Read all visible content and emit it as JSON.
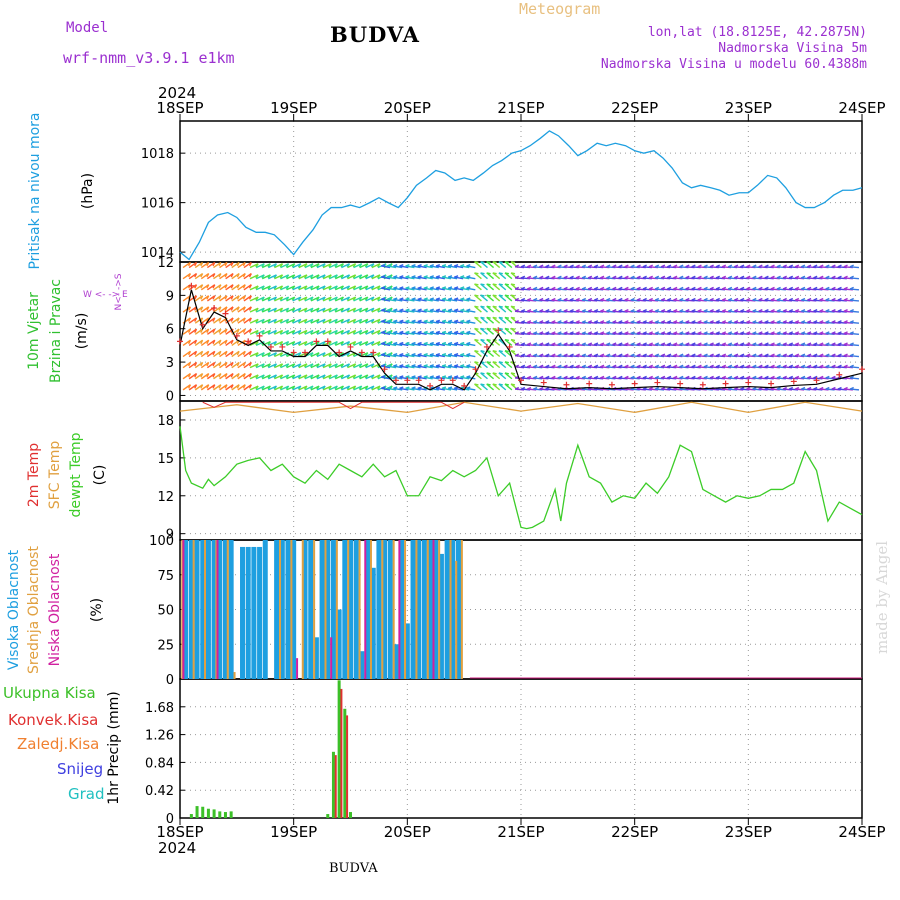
{
  "header": {
    "model_label": "Model",
    "model_name": "wrf-nmm_v3.9.1  e1km",
    "station": "BUDVA",
    "meteogram": "Meteogram",
    "lonlat": "lon,lat (18.8125E, 42.2875N)",
    "altitude": "Nadmorska Visina 5m",
    "model_altitude": "Nadmorska Visina u modelu 60.4388m",
    "footer_station": "BUDVA",
    "credit": "made by Angel"
  },
  "colors": {
    "pressure": "#1e9fe0",
    "temp2m": "#e03030",
    "sfc_temp": "#e0a040",
    "dewpoint": "#3ccc28",
    "high_cloud": "#1e9fe0",
    "mid_cloud": "#e0a040",
    "low_cloud": "#d020a0",
    "total_precip": "#3cc028",
    "conv_precip": "#e03030",
    "frozen_precip": "#f08030",
    "snow": "#4040e0",
    "hail": "#20c0c0",
    "grid": "#999999"
  },
  "chart_data": [
    {
      "type": "line",
      "id": "pressure",
      "ylabel_colored": "Pritisak na nivou mora",
      "ylabel_unit": "(hPa)",
      "x_ticks": [
        "18SEP",
        "19SEP",
        "20SEP",
        "21SEP",
        "22SEP",
        "23SEP",
        "24SEP"
      ],
      "x_year": "2024",
      "ylim": [
        1013.6,
        1019.3
      ],
      "y_ticks": [
        1014,
        1016,
        1018
      ],
      "series": [
        {
          "x": [
            0,
            0.08,
            0.17,
            0.25,
            0.33,
            0.42,
            0.5,
            0.58,
            0.67,
            0.75,
            0.83,
            0.92,
            1.0,
            1.08,
            1.17,
            1.25,
            1.33,
            1.42,
            1.5,
            1.58,
            1.67,
            1.75,
            1.83,
            1.92,
            2.0,
            2.08,
            2.17,
            2.25,
            2.33,
            2.42,
            2.5,
            2.58,
            2.67,
            2.75,
            2.83,
            2.92,
            3.0,
            3.08,
            3.17,
            3.25,
            3.33,
            3.42,
            3.5,
            3.58,
            3.67,
            3.75,
            3.83,
            3.92,
            4.0,
            4.08,
            4.17,
            4.25,
            4.33,
            4.42,
            4.5,
            4.58,
            4.67,
            4.75,
            4.83,
            4.92,
            5.0,
            5.08,
            5.17,
            5.25,
            5.33,
            5.42,
            5.5,
            5.58,
            5.67,
            5.75,
            5.83,
            5.92,
            6.0
          ],
          "y": [
            1014.0,
            1013.7,
            1014.4,
            1015.2,
            1015.5,
            1015.6,
            1015.4,
            1015.0,
            1014.8,
            1014.8,
            1014.7,
            1014.3,
            1013.9,
            1014.4,
            1014.9,
            1015.5,
            1015.8,
            1015.8,
            1015.9,
            1015.8,
            1016.0,
            1016.2,
            1016.0,
            1015.8,
            1016.2,
            1016.7,
            1017.0,
            1017.3,
            1017.2,
            1016.9,
            1017.0,
            1016.9,
            1017.2,
            1017.5,
            1017.7,
            1018.0,
            1018.1,
            1018.3,
            1018.6,
            1018.9,
            1018.7,
            1018.3,
            1017.9,
            1018.1,
            1018.4,
            1018.3,
            1018.4,
            1018.3,
            1018.1,
            1018.0,
            1018.1,
            1017.8,
            1017.4,
            1016.8,
            1016.6,
            1016.7,
            1016.6,
            1016.5,
            1016.3,
            1016.4,
            1016.4,
            1016.7,
            1017.1,
            1017.0,
            1016.6,
            1016.0,
            1015.8,
            1015.8,
            1016.0,
            1016.3,
            1016.5,
            1016.5,
            1016.6
          ]
        }
      ]
    },
    {
      "type": "line",
      "id": "wind",
      "ylabel_colored_1": "10m Vjetar",
      "ylabel_colored_2": "Brzina i Pravac",
      "ylabel_unit": "(m/s)",
      "compass": "N<- ->S",
      "compass_we": "W <- -> E",
      "ylim": [
        -0.5,
        12
      ],
      "y_ticks": [
        0,
        3,
        6,
        9,
        12
      ],
      "series": [
        {
          "name": "speed",
          "x": [
            0,
            0.1,
            0.2,
            0.3,
            0.4,
            0.5,
            0.6,
            0.7,
            0.8,
            0.9,
            1.0,
            1.1,
            1.2,
            1.3,
            1.4,
            1.5,
            1.6,
            1.7,
            1.8,
            1.9,
            2.0,
            2.1,
            2.2,
            2.3,
            2.4,
            2.5,
            2.6,
            2.7,
            2.8,
            2.9,
            3.0,
            3.2,
            3.4,
            3.6,
            3.8,
            4.0,
            4.2,
            4.4,
            4.6,
            4.8,
            5.0,
            5.2,
            5.4,
            5.6,
            5.8,
            6.0
          ],
          "y": [
            4.5,
            9.5,
            6.0,
            7.5,
            7.0,
            5.0,
            4.5,
            5.0,
            4.0,
            4.0,
            3.5,
            3.5,
            4.5,
            4.5,
            3.5,
            4.0,
            3.5,
            3.5,
            2.0,
            1.0,
            1.0,
            1.0,
            0.5,
            1.0,
            1.0,
            0.5,
            2.0,
            4.0,
            5.5,
            4.0,
            1.0,
            0.8,
            0.6,
            0.7,
            0.6,
            0.7,
            0.8,
            0.7,
            0.6,
            0.7,
            0.8,
            0.7,
            0.9,
            1.0,
            1.5,
            2.0
          ]
        }
      ]
    },
    {
      "type": "line",
      "id": "temperature",
      "ylabel_colored_1": "2m Temp",
      "ylabel_colored_2": "SFC Temp",
      "ylabel_colored_3": "dewpt Temp",
      "ylabel_unit": "(C)",
      "ylim": [
        8.5,
        19.5
      ],
      "y_ticks": [
        9,
        12,
        15,
        18
      ],
      "series": [
        {
          "name": "dewpt Temp",
          "x": [
            0,
            0.05,
            0.1,
            0.2,
            0.25,
            0.3,
            0.4,
            0.5,
            0.6,
            0.7,
            0.8,
            0.9,
            1.0,
            1.1,
            1.2,
            1.3,
            1.4,
            1.5,
            1.6,
            1.7,
            1.8,
            1.9,
            2.0,
            2.1,
            2.2,
            2.3,
            2.4,
            2.5,
            2.6,
            2.7,
            2.8,
            2.9,
            3.0,
            3.05,
            3.1,
            3.2,
            3.3,
            3.35,
            3.4,
            3.5,
            3.6,
            3.7,
            3.8,
            3.9,
            4.0,
            4.1,
            4.2,
            4.3,
            4.4,
            4.5,
            4.6,
            4.7,
            4.8,
            4.9,
            5.0,
            5.1,
            5.2,
            5.3,
            5.4,
            5.5,
            5.6,
            5.7,
            5.8,
            5.9,
            6.0
          ],
          "y": [
            17.5,
            14.0,
            13.0,
            12.6,
            13.3,
            12.8,
            13.5,
            14.5,
            14.8,
            15.0,
            14.0,
            14.5,
            13.5,
            13.0,
            14.0,
            13.3,
            14.5,
            14.0,
            13.5,
            14.5,
            13.5,
            14.0,
            12.0,
            12.0,
            13.5,
            13.2,
            14.0,
            13.5,
            14.0,
            15.0,
            12.0,
            13.0,
            9.5,
            9.4,
            9.5,
            10.0,
            12.5,
            10.0,
            13.0,
            16.0,
            13.5,
            13.0,
            11.5,
            12.0,
            11.8,
            13.0,
            12.2,
            13.5,
            16.0,
            15.5,
            12.5,
            12.0,
            11.5,
            12.0,
            11.8,
            12.0,
            12.5,
            12.5,
            13.0,
            15.5,
            14.0,
            10.0,
            11.5,
            11.0,
            10.5
          ]
        },
        {
          "name": "SFC Temp",
          "x": [
            0,
            0.5,
            1.0,
            1.5,
            2.0,
            2.5,
            3.0,
            3.5,
            4.0,
            4.5,
            5.0,
            5.5,
            6.0
          ],
          "y": [
            18.7,
            19.2,
            18.6,
            19.1,
            18.6,
            19.4,
            18.7,
            19.3,
            18.6,
            19.4,
            18.6,
            19.4,
            18.7
          ]
        },
        {
          "name": "2m Temp",
          "x": [
            0.2,
            0.3,
            0.4,
            1.4,
            1.5,
            1.6,
            2.3,
            2.4,
            2.5
          ],
          "y": [
            19.4,
            19.0,
            19.4,
            19.4,
            18.9,
            19.4,
            19.4,
            18.9,
            19.4
          ]
        }
      ]
    },
    {
      "type": "bar",
      "id": "cloud",
      "ylabel_colored_1": "Visoka Oblacnost",
      "ylabel_colored_2": "Srednja Oblacnost",
      "ylabel_colored_3": "Niska Oblacnost",
      "ylabel_unit": "(%)",
      "ylim": [
        0,
        100
      ],
      "y_ticks": [
        0,
        25,
        50,
        75,
        100
      ],
      "series": [
        {
          "name": "Visoka Oblacnost",
          "x": [
            0.05,
            0.1,
            0.15,
            0.2,
            0.25,
            0.3,
            0.35,
            0.4,
            0.45,
            0.55,
            0.6,
            0.65,
            0.7,
            0.75,
            0.85,
            0.9,
            0.95,
            1.0,
            1.1,
            1.15,
            1.2,
            1.25,
            1.3,
            1.35,
            1.4,
            1.45,
            1.5,
            1.55,
            1.6,
            1.65,
            1.7,
            1.75,
            1.8,
            1.85,
            1.9,
            1.95,
            2.0,
            2.05,
            2.1,
            2.15,
            2.2,
            2.25,
            2.3,
            2.35,
            2.4,
            2.45
          ],
          "y": [
            100,
            100,
            100,
            100,
            100,
            100,
            100,
            100,
            100,
            95,
            95,
            95,
            95,
            100,
            100,
            100,
            100,
            100,
            100,
            100,
            30,
            100,
            100,
            100,
            50,
            100,
            100,
            100,
            20,
            100,
            80,
            100,
            100,
            100,
            25,
            100,
            40,
            100,
            100,
            100,
            100,
            100,
            90,
            100,
            100,
            100
          ]
        },
        {
          "name": "Srednja Oblacnost",
          "x": [
            0.02,
            0.12,
            0.22,
            0.32,
            0.42,
            0.48,
            0.88,
            0.98,
            1.08,
            1.18,
            1.28,
            1.38,
            1.48,
            1.58,
            1.68,
            1.78,
            1.88,
            1.98,
            2.08,
            2.18,
            2.28,
            2.38,
            2.43,
            2.48
          ],
          "y": [
            100,
            100,
            100,
            100,
            100,
            5,
            100,
            100,
            100,
            100,
            100,
            100,
            100,
            100,
            100,
            100,
            100,
            100,
            100,
            100,
            100,
            100,
            85,
            100
          ]
        },
        {
          "name": "Niska Oblacnost",
          "x": [
            0.03,
            0.33,
            1.03,
            1.33,
            1.63,
            1.93,
            2.23
          ],
          "y": [
            100,
            100,
            15,
            30,
            100,
            100,
            100
          ]
        }
      ]
    },
    {
      "type": "bar",
      "id": "precip",
      "legend": [
        "Ukupna Kisa",
        "Konvek.Kisa",
        "Zaledj.Kisa",
        "Snijeg",
        "Grad"
      ],
      "ylabel": "1hr Precip (mm)",
      "ylim": [
        0,
        2.1
      ],
      "y_ticks": [
        0,
        0.42,
        0.84,
        1.26,
        1.68
      ],
      "series": [
        {
          "name": "Ukupna Kisa",
          "x": [
            0.1,
            0.15,
            0.2,
            0.25,
            0.3,
            0.35,
            0.4,
            0.45,
            1.3,
            1.35,
            1.4,
            1.45,
            1.5
          ],
          "y": [
            0.06,
            0.18,
            0.17,
            0.14,
            0.13,
            0.1,
            0.09,
            0.1,
            0.06,
            1.0,
            2.08,
            1.65,
            0.09
          ]
        },
        {
          "name": "Konvek.Kisa",
          "x": [
            1.37,
            1.42,
            1.47
          ],
          "y": [
            0.95,
            1.95,
            1.55
          ]
        }
      ]
    }
  ]
}
